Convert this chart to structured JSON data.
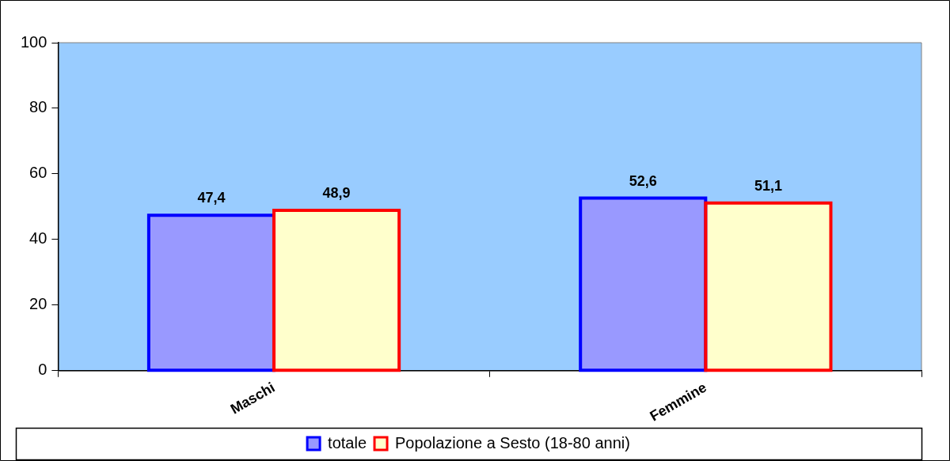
{
  "chart_data": {
    "type": "bar",
    "categories": [
      "Maschi",
      "Femmine"
    ],
    "series": [
      {
        "name": "totale",
        "color": "#9999ff",
        "values": [
          47.4,
          52.6
        ],
        "value_labels": [
          "47,4",
          "52,6"
        ]
      },
      {
        "name": "Popolazione a Sesto (18-80 anni)",
        "color": "#ffffcc",
        "values": [
          48.9,
          51.1
        ],
        "value_labels": [
          "48,9",
          "51,1"
        ]
      }
    ],
    "ylim": [
      0,
      100
    ],
    "yticks": [
      0,
      20,
      40,
      60,
      80,
      100
    ],
    "grid": false,
    "legend": "bottom"
  }
}
